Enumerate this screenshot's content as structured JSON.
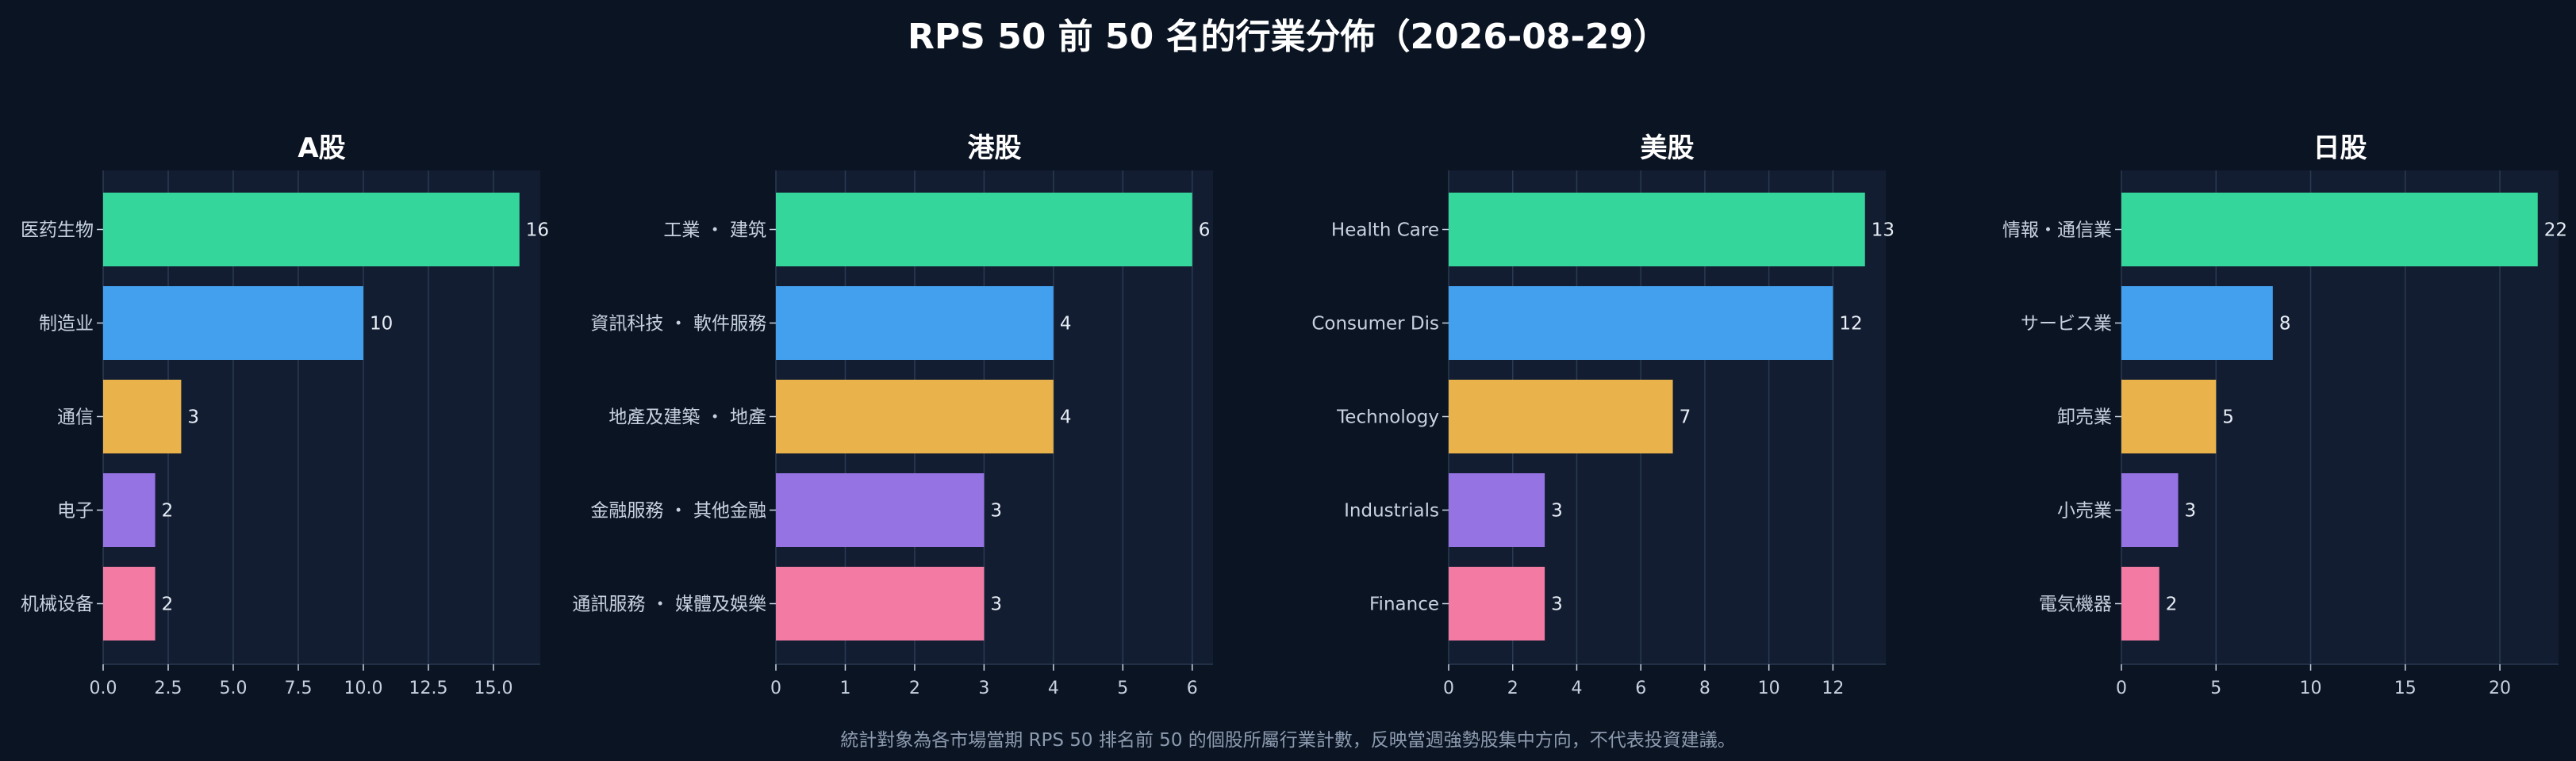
{
  "page": {
    "title": "RPS 50 前 50 名的行業分佈（2026-08-29）",
    "footnote": "統計對象為各市場當期 RPS 50 排名前 50 的個股所屬行業計數，反映當週強勢股集中方向，不代表投資建議。"
  },
  "colors": {
    "background": "#0b1422",
    "plot_bg": "#121d31",
    "grid": "#2a3a52",
    "text": "#e6edf5",
    "tick": "#c7d2e0",
    "bars": [
      "#35d69b",
      "#42a0ef",
      "#e9b24a",
      "#9673e2",
      "#f27aa3"
    ]
  },
  "chart_data": [
    {
      "type": "bar",
      "orientation": "horizontal",
      "title": "A股",
      "categories": [
        "医药生物",
        "制造业",
        "通信",
        "电子",
        "机械设备"
      ],
      "values": [
        16,
        10,
        3,
        2,
        2
      ],
      "xlim": [
        0,
        16.8
      ],
      "xticks": [
        "0.0",
        "2.5",
        "5.0",
        "7.5",
        "10.0",
        "12.5",
        "15.0"
      ],
      "xtick_values": [
        0,
        2.5,
        5,
        7.5,
        10,
        12.5,
        15
      ],
      "grid": true
    },
    {
      "type": "bar",
      "orientation": "horizontal",
      "title": "港股",
      "categories": [
        "工業 ・ 建筑",
        "資訊科技 ・ 軟件服務",
        "地產及建築 ・ 地產",
        "金融服務 ・ 其他金融",
        "通訊服務 ・ 媒體及娛樂"
      ],
      "values": [
        6,
        4,
        4,
        3,
        3
      ],
      "xlim": [
        0,
        6.3
      ],
      "xticks": [
        "0",
        "1",
        "2",
        "3",
        "4",
        "5",
        "6"
      ],
      "xtick_values": [
        0,
        1,
        2,
        3,
        4,
        5,
        6
      ],
      "grid": true
    },
    {
      "type": "bar",
      "orientation": "horizontal",
      "title": "美股",
      "categories": [
        "Health Care",
        "Consumer Dis",
        "Technology",
        "Industrials",
        "Finance"
      ],
      "values": [
        13,
        12,
        7,
        3,
        3
      ],
      "xlim": [
        0,
        13.65
      ],
      "xticks": [
        "0",
        "2",
        "4",
        "6",
        "8",
        "10",
        "12"
      ],
      "xtick_values": [
        0,
        2,
        4,
        6,
        8,
        10,
        12
      ],
      "grid": true
    },
    {
      "type": "bar",
      "orientation": "horizontal",
      "title": "日股",
      "categories": [
        "情報・通信業",
        "サービス業",
        "卸売業",
        "小売業",
        "電気機器"
      ],
      "values": [
        22,
        8,
        5,
        3,
        2
      ],
      "xlim": [
        0,
        23.1
      ],
      "xticks": [
        "0",
        "5",
        "10",
        "15",
        "20"
      ],
      "xtick_values": [
        0,
        5,
        10,
        15,
        20
      ],
      "grid": true
    }
  ]
}
